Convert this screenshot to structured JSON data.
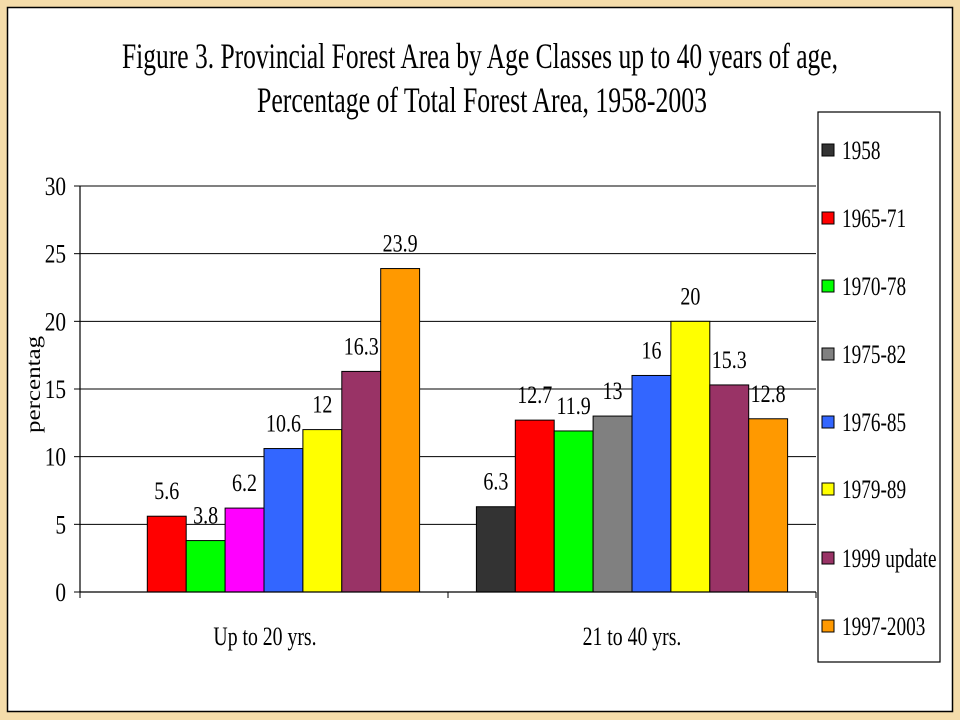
{
  "chart_data": {
    "type": "bar",
    "title": "Figure 3. Provincial Forest Area by Age Classes up to 40 years of age,",
    "subtitle": "Percentage of Total Forest Area, 1958-2003",
    "ylabel": "percentag",
    "ylim": [
      0,
      30
    ],
    "yticks": [
      0,
      5,
      10,
      15,
      20,
      25,
      30
    ],
    "ytick_labels": [
      "0",
      "5",
      "10",
      "15",
      "20",
      "25",
      "30"
    ],
    "categories": [
      "Up to 20 yrs.",
      "21 to 40 yrs."
    ],
    "series": [
      {
        "name": "1958",
        "color": "#333333",
        "values": [
          null,
          6.3
        ]
      },
      {
        "name": "1965-71",
        "color": "#FF0000",
        "values": [
          5.6,
          12.7
        ]
      },
      {
        "name": "1970-78",
        "color": "#00FF00",
        "values": [
          3.8,
          11.9
        ]
      },
      {
        "name": "1975-82",
        "color": "#808080",
        "values": [
          6.2,
          13
        ],
        "point_colors": [
          "#FF00FF",
          null
        ]
      },
      {
        "name": "1976-85",
        "color": "#3366FF",
        "values": [
          10.6,
          16
        ]
      },
      {
        "name": "1979-89",
        "color": "#FFFF00",
        "values": [
          12,
          20
        ]
      },
      {
        "name": "1999 update",
        "color": "#993366",
        "values": [
          16.3,
          15.3
        ]
      },
      {
        "name": "1997-2003",
        "color": "#FF9900",
        "values": [
          23.9,
          12.8
        ]
      }
    ],
    "grid": true,
    "data_labels": true,
    "legend": "right"
  }
}
